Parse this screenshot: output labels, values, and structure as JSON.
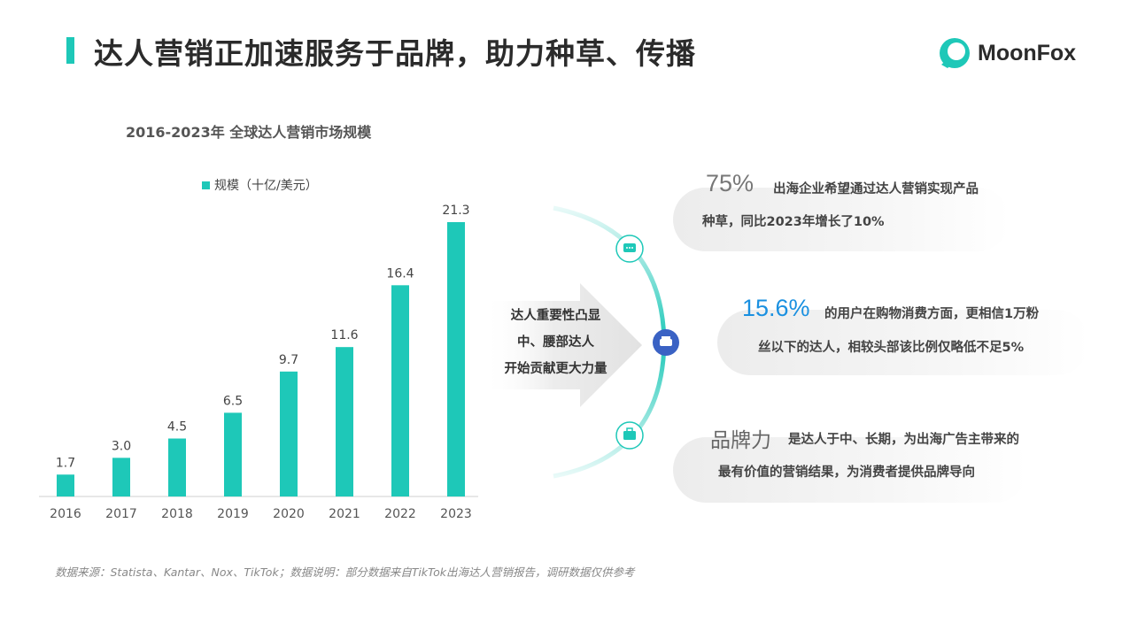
{
  "header": {
    "title": "达人营销正加速服务于品牌，助力种草、传播",
    "logo_text": "MoonFox"
  },
  "chart_data": {
    "type": "bar",
    "title": "2016-2023年 全球达人营销市场规模",
    "categories": [
      "2016",
      "2017",
      "2018",
      "2019",
      "2020",
      "2021",
      "2022",
      "2023"
    ],
    "series": [
      {
        "name": "规模（十亿/美元）",
        "values": [
          1.7,
          3.0,
          4.5,
          6.5,
          9.7,
          11.6,
          16.4,
          21.3
        ]
      }
    ],
    "value_labels": [
      "1.7",
      "3.0",
      "4.5",
      "6.5",
      "9.7",
      "11.6",
      "16.4",
      "21.3"
    ],
    "ylim": [
      0,
      21.3
    ],
    "color": "#1ec8b8",
    "grid": false,
    "legend_position": "top"
  },
  "arrow": {
    "lines": [
      "达人重要性凸显",
      "中、腰部达人",
      "开始贡献更大力量"
    ]
  },
  "colors": {
    "accent": "#1ec8b8",
    "center_node": "#3a62c4",
    "highlight_blue": "#1a90e0"
  },
  "icons": [
    "chat-icon",
    "sofa-icon",
    "briefcase-icon"
  ],
  "stats": [
    {
      "big": "75%",
      "line1": "出海企业希望通过达人营销实现产品",
      "line2": "种草，同比2023年增长了10%"
    },
    {
      "big": "15.6%",
      "line1": "的用户在购物消费方面，更相信1万粉",
      "line2": "丝以下的达人，相较头部该比例仅略低不足5%"
    },
    {
      "big": "品牌力",
      "line1": "是达人于中、长期，为出海广告主带来的",
      "line2": "最有价值的营销结果，为消费者提供品牌导向"
    }
  ],
  "footnote": "数据来源：Statista、Kantar、Nox、TikTok；数据说明：部分数据来自TikTok出海达人营销报告，调研数据仅供参考"
}
